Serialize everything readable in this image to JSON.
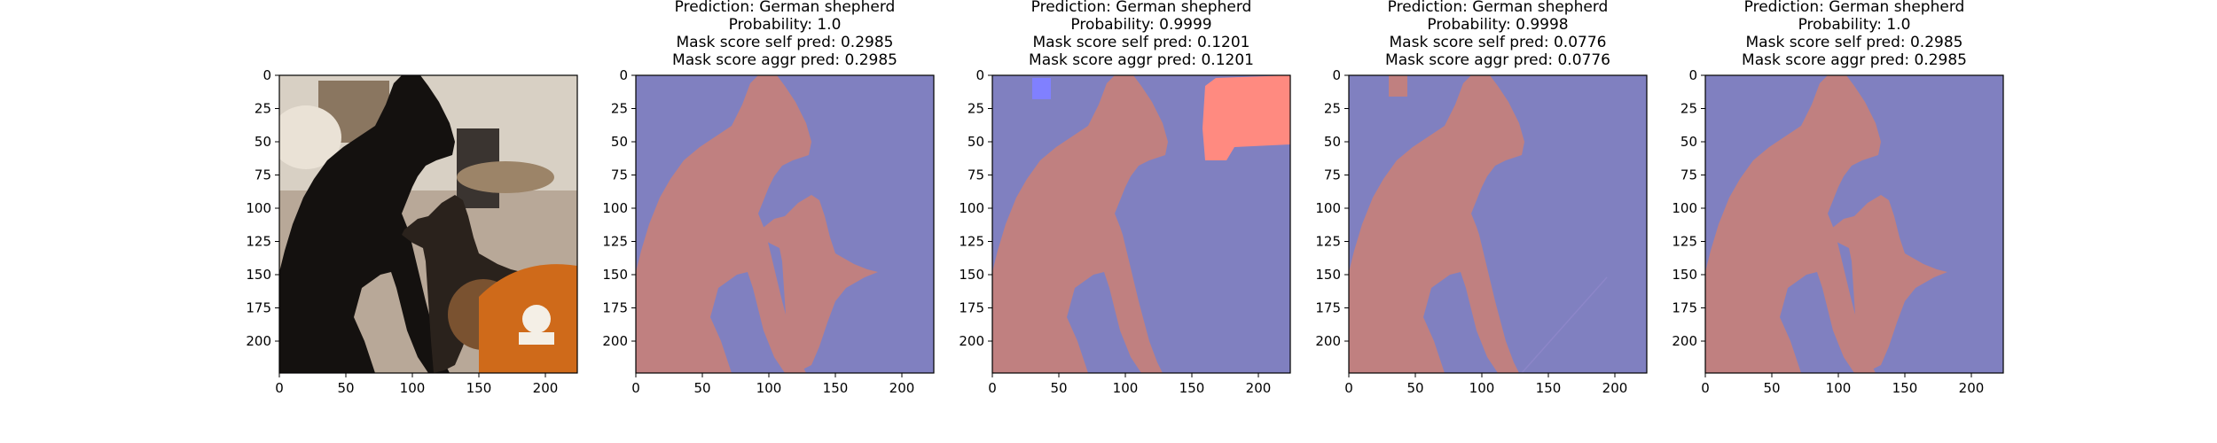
{
  "figure": {
    "panels": [
      {
        "id": "input",
        "title_lines": []
      },
      {
        "id": "mask-1",
        "title_lines": [
          "Prediction: German shepherd",
          "Probability: 1.0",
          "Mask score self pred: 0.2985",
          "Mask score aggr pred: 0.2985"
        ]
      },
      {
        "id": "mask-2",
        "title_lines": [
          "Prediction: German shepherd",
          "Probability: 0.9999",
          "Mask score self pred: 0.1201",
          "Mask score aggr pred: 0.1201"
        ]
      },
      {
        "id": "mask-3",
        "title_lines": [
          "Prediction: German shepherd",
          "Probability: 0.9998",
          "Mask score self pred: 0.0776",
          "Mask score aggr pred: 0.0776"
        ]
      },
      {
        "id": "mask-4",
        "title_lines": [
          "Prediction: German shepherd",
          "Probability: 1.0",
          "Mask score self pred: 0.2985",
          "Mask score aggr pred: 0.2985"
        ]
      }
    ]
  },
  "chart_data": [
    {
      "type": "heatmap",
      "content": "photo",
      "title": "",
      "xticks": [
        0,
        50,
        100,
        150,
        200
      ],
      "yticks": [
        0,
        25,
        50,
        75,
        100,
        125,
        150,
        175,
        200
      ],
      "xlim": [
        0,
        224
      ],
      "ylim": [
        224,
        0
      ],
      "grid": false
    },
    {
      "type": "heatmap",
      "content": "mask",
      "title": "Prediction: German shepherd\nProbability: 1.0\nMask score self pred: 0.2985\nMask score aggr pred: 0.2985",
      "prediction": "German shepherd",
      "probability": 1.0,
      "mask_score_self_pred": 0.2985,
      "mask_score_aggr_pred": 0.2985,
      "xticks": [
        0,
        50,
        100,
        150,
        200
      ],
      "yticks": [
        0,
        25,
        50,
        75,
        100,
        125,
        150,
        175,
        200
      ],
      "xlim": [
        0,
        224
      ],
      "ylim": [
        224,
        0
      ],
      "grid": false
    },
    {
      "type": "heatmap",
      "content": "mask",
      "title": "Prediction: German shepherd\nProbability: 0.9999\nMask score self pred: 0.1201\nMask score aggr pred: 0.1201",
      "prediction": "German shepherd",
      "probability": 0.9999,
      "mask_score_self_pred": 0.1201,
      "mask_score_aggr_pred": 0.1201,
      "xticks": [
        0,
        50,
        100,
        150,
        200
      ],
      "yticks": [
        0,
        25,
        50,
        75,
        100,
        125,
        150,
        175,
        200
      ],
      "xlim": [
        0,
        224
      ],
      "ylim": [
        224,
        0
      ],
      "grid": false
    },
    {
      "type": "heatmap",
      "content": "mask",
      "title": "Prediction: German shepherd\nProbability: 0.9998\nMask score self pred: 0.0776\nMask score aggr pred: 0.0776",
      "prediction": "German shepherd",
      "probability": 0.9998,
      "mask_score_self_pred": 0.0776,
      "mask_score_aggr_pred": 0.0776,
      "xticks": [
        0,
        50,
        100,
        150,
        200
      ],
      "yticks": [
        0,
        25,
        50,
        75,
        100,
        125,
        150,
        175,
        200
      ],
      "xlim": [
        0,
        224
      ],
      "ylim": [
        224,
        0
      ],
      "grid": false
    },
    {
      "type": "heatmap",
      "content": "mask",
      "title": "Prediction: German shepherd\nProbability: 1.0\nMask score self pred: 0.2985\nMask score aggr pred: 0.2985",
      "prediction": "German shepherd",
      "probability": 1.0,
      "mask_score_self_pred": 0.2985,
      "mask_score_aggr_pred": 0.2985,
      "xticks": [
        0,
        50,
        100,
        150,
        200
      ],
      "yticks": [
        0,
        25,
        50,
        75,
        100,
        125,
        150,
        175,
        200
      ],
      "xlim": [
        0,
        224
      ],
      "ylim": [
        224,
        0
      ],
      "grid": false
    }
  ],
  "colors": {
    "background_region": "#8080c0",
    "foreground_region": "#c08080",
    "highlight_red": "#ff8a80",
    "highlight_blue": "#8080ff",
    "photo_wall": "#d8d0c4",
    "photo_floor": "#b8a898",
    "photo_dog_black": "#14110f",
    "photo_dog_tan": "#7a5230",
    "photo_ball": "#cf6a1a",
    "photo_ball_print": "#f4efe6"
  }
}
